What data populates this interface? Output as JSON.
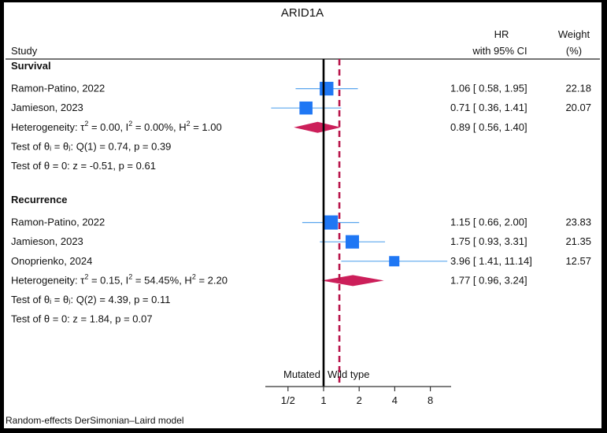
{
  "chart_data": {
    "type": "forest",
    "title": "ARID1A",
    "headers": {
      "study": "Study",
      "hr_line1": "HR",
      "hr_line2": "with 95% CI",
      "weight_line1": "Weight",
      "weight_line2": "(%)"
    },
    "axis": {
      "scale": "log2",
      "ticks": [
        0.5,
        1,
        2,
        4,
        8
      ],
      "tick_labels": [
        "1/2",
        "1",
        "2",
        "4",
        "8"
      ],
      "reference_line": 1,
      "overall_line": 1.36,
      "left_label": "Mutated",
      "right_label": "Wild type"
    },
    "groups": [
      {
        "name": "Survival",
        "studies": [
          {
            "label": "Ramon-Patino, 2022",
            "hr": 1.06,
            "lo": 0.58,
            "hi": 1.95,
            "weight": 22.18,
            "ci_text": "1.06 [ 0.58,    1.95]",
            "weight_text": "22.18"
          },
          {
            "label": "Jamieson, 2023",
            "hr": 0.71,
            "lo": 0.36,
            "hi": 1.41,
            "weight": 20.07,
            "ci_text": "0.71 [ 0.36,    1.41]",
            "weight_text": "20.07"
          }
        ],
        "pooled": {
          "hr": 0.89,
          "lo": 0.56,
          "hi": 1.4,
          "ci_text": "0.89 [ 0.56,    1.40]"
        },
        "heterogeneity": {
          "prefix": "Heterogeneity: ",
          "tau": "τ",
          "tau_val": " = 0.00, I",
          "i_val": " = 0.00%, H",
          "h_val": " = 1.00",
          "sup": "2"
        },
        "test_equal": "Test of θᵢ = θⱼ: Q(1) = 0.74, p = 0.39",
        "test_zero": "Test of θ = 0: z = -0.51, p = 0.61"
      },
      {
        "name": "Recurrence",
        "studies": [
          {
            "label": "Ramon-Patino, 2022",
            "hr": 1.15,
            "lo": 0.66,
            "hi": 2.0,
            "weight": 23.83,
            "ci_text": "1.15 [ 0.66,    2.00]",
            "weight_text": "23.83"
          },
          {
            "label": "Jamieson, 2023",
            "hr": 1.75,
            "lo": 0.93,
            "hi": 3.31,
            "weight": 21.35,
            "ci_text": "1.75 [ 0.93,    3.31]",
            "weight_text": "21.35"
          },
          {
            "label": "Onoprienko, 2024",
            "hr": 3.96,
            "lo": 1.41,
            "hi": 11.14,
            "weight": 12.57,
            "ci_text": "3.96 [ 1.41,  11.14]",
            "weight_text": "12.57"
          }
        ],
        "pooled": {
          "hr": 1.77,
          "lo": 0.96,
          "hi": 3.24,
          "ci_text": "1.77 [ 0.96,    3.24]"
        },
        "heterogeneity": {
          "prefix": "Heterogeneity: ",
          "tau": "τ",
          "tau_val": " = 0.15, I",
          "i_val": " = 54.45%, H",
          "h_val": " = 2.20",
          "sup": "2"
        },
        "test_equal": "Test of θᵢ = θⱼ: Q(2) = 4.39, p = 0.11",
        "test_zero": "Test of θ = 0: z = 1.84, p = 0.07"
      }
    ],
    "footnote": "Random-effects DerSimonian–Laird model",
    "colors": {
      "marker": "#1f77f4",
      "ci_line": "#5aa6ee",
      "pooled": "#cc1f5a",
      "overall_line": "#b8154a",
      "null_line": "#000000",
      "rule": "#222222"
    }
  }
}
